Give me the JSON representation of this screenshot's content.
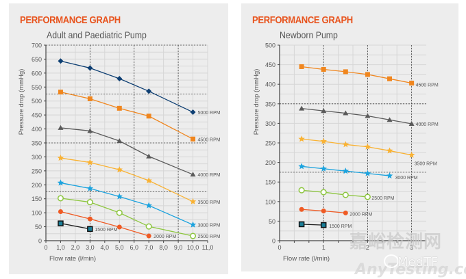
{
  "colors": {
    "heading": "#e8541e",
    "panel_bg": "#ededed",
    "grid": "#d6d6d6",
    "grid_dotted": "#444444",
    "axis": "#444444",
    "text": "#555555"
  },
  "watermark": {
    "chinese": "嘉峪检测网",
    "brand": "MedTF",
    "site": "AnyTesting.com"
  },
  "chart_data": [
    {
      "type": "line",
      "heading": "PERFORMANCE GRAPH",
      "title": "Adult and Paediatric Pump",
      "xlabel": "Flow rate (l/min)",
      "ylabel": "Pressure drop (mmHg)",
      "xlim": [
        0,
        11
      ],
      "ylim": [
        0,
        700
      ],
      "xticks": [
        0,
        1,
        2,
        3,
        4,
        5,
        6,
        7,
        8,
        9,
        10,
        11
      ],
      "xtick_labels": [
        "0",
        "1,0",
        "2,0",
        "3,0",
        "4,0",
        "5,0",
        "6,0",
        "7,0",
        "8,0",
        "9,0",
        "10,0",
        "11,0"
      ],
      "yticks": [
        0,
        50,
        100,
        150,
        200,
        250,
        300,
        350,
        400,
        450,
        500,
        550,
        600,
        650,
        700
      ],
      "ytick_labels": [
        "0",
        "50",
        "100",
        "150",
        "200",
        "250",
        "300",
        "350",
        "400",
        "450",
        "500",
        "550",
        "600",
        "650",
        "700"
      ],
      "grid": true,
      "dotted_x": [
        3,
        6,
        9
      ],
      "dotted_y": [
        175,
        350,
        525,
        700
      ],
      "series": [
        {
          "name": "5000 RPM",
          "color": "#0e3f73",
          "marker": "diamond",
          "x": [
            1,
            3,
            5,
            7,
            10
          ],
          "y": [
            643,
            618,
            580,
            535,
            460
          ]
        },
        {
          "name": "4500 RPM",
          "color": "#f0861e",
          "marker": "square",
          "x": [
            1,
            3,
            5,
            7,
            10
          ],
          "y": [
            532,
            508,
            474,
            446,
            364
          ]
        },
        {
          "name": "4000 RPM",
          "color": "#5a5a5a",
          "marker": "triangle",
          "x": [
            1,
            3,
            5,
            7,
            10
          ],
          "y": [
            404,
            393,
            357,
            302,
            237
          ]
        },
        {
          "name": "3500 RPM",
          "color": "#f9b233",
          "marker": "star",
          "x": [
            1,
            3,
            5,
            7,
            10
          ],
          "y": [
            296,
            280,
            254,
            215,
            140
          ]
        },
        {
          "name": "3000 RPM",
          "color": "#1ca3de",
          "marker": "star",
          "x": [
            1,
            3,
            5,
            7,
            10
          ],
          "y": [
            207,
            187,
            158,
            126,
            57
          ]
        },
        {
          "name": "2500 RPM",
          "color": "#8dc63f",
          "marker": "circle-open",
          "x": [
            1,
            3,
            5,
            7,
            10
          ],
          "y": [
            152,
            138,
            100,
            51,
            17
          ]
        },
        {
          "name": "2000 RPM",
          "color": "#ef5a24",
          "marker": "circle",
          "x": [
            1,
            3,
            5,
            7
          ],
          "y": [
            104,
            78,
            49,
            17
          ]
        },
        {
          "name": "1500 RPM",
          "color": "#1a1a1a",
          "marker": "square-teal",
          "x": [
            1,
            3
          ],
          "y": [
            62,
            42
          ]
        }
      ]
    },
    {
      "type": "line",
      "heading": "PERFORMANCE GRAPH",
      "title": "Newborn Pump",
      "xlabel": "Flow rate (l/min)",
      "ylabel": "Pressure drop (mmHg)",
      "xlim": [
        0,
        3.333
      ],
      "ylim": [
        0,
        500
      ],
      "xticks": [
        0,
        1,
        2,
        3
      ],
      "xtick_labels": [
        "0",
        "1",
        "2",
        "3"
      ],
      "yticks": [
        0,
        50,
        100,
        150,
        200,
        250,
        300,
        350,
        400,
        450,
        500
      ],
      "ytick_labels": [
        "0",
        "50",
        "100",
        "150",
        "200",
        "250",
        "300",
        "350",
        "400",
        "450",
        "500"
      ],
      "grid": true,
      "dotted_x": [
        1,
        2,
        3
      ],
      "dotted_y": [
        175,
        350
      ],
      "series": [
        {
          "name": "4500 RPM",
          "color": "#f0861e",
          "marker": "square",
          "x": [
            0.5,
            1,
            1.5,
            2,
            2.5,
            3
          ],
          "y": [
            445,
            438,
            432,
            425,
            414,
            403
          ]
        },
        {
          "name": "4000 RPM",
          "color": "#5a5a5a",
          "marker": "triangle",
          "x": [
            0.5,
            1,
            1.5,
            2,
            2.5,
            3
          ],
          "y": [
            338,
            332,
            326,
            319,
            309,
            299
          ]
        },
        {
          "name": "3500 RPM",
          "color": "#f9b233",
          "marker": "star",
          "x": [
            0.5,
            1,
            1.5,
            2,
            2.5,
            3
          ],
          "y": [
            260,
            254,
            246,
            240,
            230,
            219
          ]
        },
        {
          "name": "3000 RPM",
          "color": "#1ca3de",
          "marker": "star",
          "x": [
            0.5,
            1,
            1.5,
            2,
            2.5
          ],
          "y": [
            190,
            184,
            178,
            172,
            166
          ]
        },
        {
          "name": "2500 RPM",
          "color": "#8dc63f",
          "marker": "circle-open",
          "x": [
            0.5,
            1,
            1.5,
            2
          ],
          "y": [
            129,
            124,
            117,
            112
          ]
        },
        {
          "name": "2000 RPM",
          "color": "#ef5a24",
          "marker": "circle",
          "x": [
            0.5,
            1,
            1.5
          ],
          "y": [
            80,
            76,
            71
          ]
        },
        {
          "name": "1500 RPM",
          "color": "#1a1a1a",
          "marker": "square-teal",
          "x": [
            0.5,
            1
          ],
          "y": [
            42,
            40
          ]
        }
      ]
    }
  ]
}
